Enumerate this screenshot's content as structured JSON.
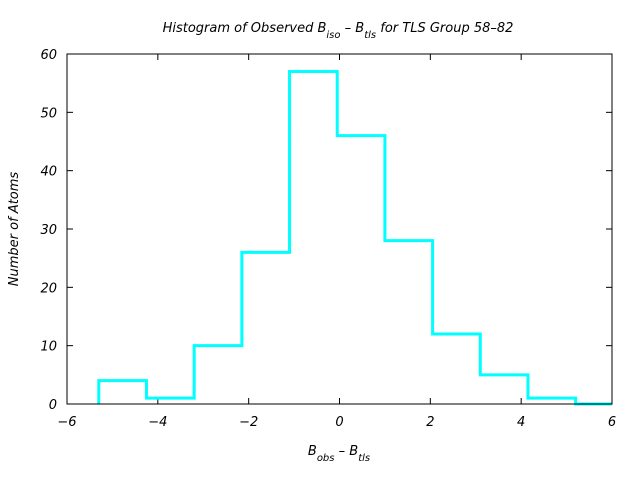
{
  "chart_data": {
    "type": "histogram",
    "title": {
      "prefix": "Histogram of Observed B",
      "sub1": "iso",
      "mid": " – B",
      "sub2": "tls",
      "suffix": " for TLS Group 58–82"
    },
    "xlabel": {
      "prefix": "B",
      "sub1": "obs",
      "mid": " – B",
      "sub2": "tls"
    },
    "ylabel": "Number of Atoms",
    "xlim": [
      -6,
      6
    ],
    "ylim": [
      0,
      60
    ],
    "xticks": [
      -6,
      -4,
      -2,
      0,
      2,
      4,
      6
    ],
    "yticks": [
      0,
      10,
      20,
      30,
      40,
      50,
      60
    ],
    "bin_edges": [
      -5.3,
      -4.25,
      -3.2,
      -2.15,
      -1.1,
      -0.05,
      1.0,
      2.05,
      3.1,
      4.15,
      5.2,
      6.0
    ],
    "counts": [
      4,
      1,
      10,
      26,
      57,
      46,
      28,
      12,
      5,
      1,
      0
    ],
    "color": "#00ffff",
    "grid": false
  }
}
